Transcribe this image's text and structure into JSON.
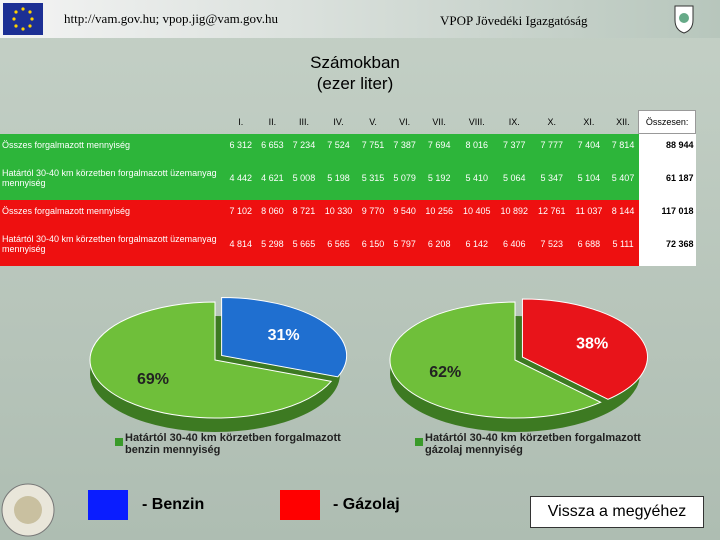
{
  "header": {
    "url": "http://vam.gov.hu; vpop.jig@vam.gov.hu",
    "org": "VPOP Jövedéki Igazgatóság"
  },
  "title": [
    "Számokban",
    "(ezer liter)"
  ],
  "table": {
    "columns": [
      "I.",
      "II.",
      "III.",
      "IV.",
      "V.",
      "VI.",
      "VII.",
      "VIII.",
      "IX.",
      "X.",
      "XI.",
      "XII.",
      "Összesen:"
    ],
    "rows": [
      [
        "Összes forgalmazott mennyiség",
        "6 312",
        "6 653",
        "7 234",
        "7 524",
        "7 751",
        "7 387",
        "7 694",
        "8 016",
        "7 377",
        "7 777",
        "7 404",
        "7 814",
        "88 944"
      ],
      [
        "Határtól 30-40 km körzetben forgalmazott üzemanyag mennyiség",
        "4 442",
        "4 621",
        "5 008",
        "5 198",
        "5 315",
        "5 079",
        "5 192",
        "5 410",
        "5 064",
        "5 347",
        "5 104",
        "5 407",
        "61 187"
      ],
      [
        "Összes forgalmazott mennyiség",
        "7 102",
        "8 060",
        "8 721",
        "10 330",
        "9 770",
        "9 540",
        "10 256",
        "10 405",
        "10 892",
        "12 761",
        "11 037",
        "8 144",
        "117 018"
      ],
      [
        "Határtól 30-40 km körzetben forgalmazott üzemanyag mennyiség",
        "4 814",
        "5 298",
        "5 665",
        "6 565",
        "6 150",
        "5 797",
        "6 208",
        "6 142",
        "6 406",
        "7 523",
        "6 688",
        "5 111",
        "72 368"
      ]
    ]
  },
  "pies": [
    {
      "values": [
        31,
        69
      ],
      "value_labels": [
        "31%",
        "69%"
      ],
      "colors": [
        "#1f6fd0",
        "#6fbf3a"
      ],
      "caption": "Határtól 30-40 km körzetben forgalmazott benzin mennyiség"
    },
    {
      "values": [
        38,
        62
      ],
      "value_labels": [
        "38%",
        "62%"
      ],
      "colors": [
        "#e8141a",
        "#6fbf3a"
      ],
      "caption": "Határtól 30-40 km körzetben forgalmazott gázolaj mennyiség"
    }
  ],
  "legend": [
    "- Benzin",
    "- Gázolaj"
  ],
  "button": "Vissza a megyéhez"
}
